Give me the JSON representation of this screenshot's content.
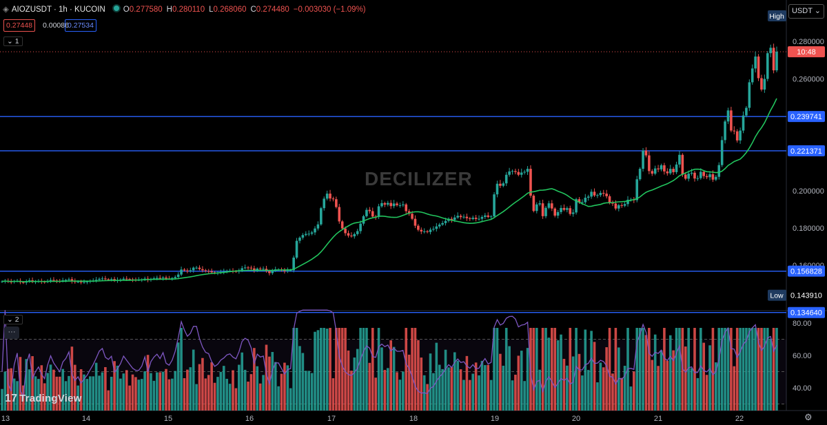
{
  "header": {
    "symbol": "AIOZUSDT · 1h · KUCOIN",
    "o_label": "O",
    "o": "0.277580",
    "h_label": "H",
    "h": "0.280110",
    "l_label": "L",
    "l": "0.268060",
    "c_label": "C",
    "c": "0.274480",
    "change": "−0.003030 (−1.09%)",
    "bid": "0.27448",
    "spread": "0.00086",
    "ask": "0.27534"
  },
  "panes": {
    "main_tag": "1",
    "rsi_tag": "2",
    "more": "···"
  },
  "currency_button": "USDT",
  "watermark": "DECILIZER",
  "branding": "TradingView",
  "price_axis": {
    "ticks": [
      "0.280000",
      "0.260000",
      "0.200000",
      "0.180000",
      "0.160000"
    ],
    "high_label": "High",
    "low_label": "Low",
    "current_price_countdown": "10:48",
    "horizontal_lines": [
      "0.239741",
      "0.221371",
      "0.156828",
      "0.134640"
    ],
    "low_value": "0.143910"
  },
  "rsi_axis": {
    "ticks": [
      "80.00",
      "60.00",
      "40.00"
    ]
  },
  "time_axis": {
    "ticks": [
      "13",
      "14",
      "15",
      "16",
      "17",
      "18",
      "19",
      "20",
      "21",
      "22"
    ]
  },
  "colors": {
    "up": "#26a69a",
    "down": "#ef5350",
    "ma": "#22c55e",
    "rsi": "#7e57c2",
    "hline": "#2962ff"
  },
  "chart_data": {
    "type": "candlestick",
    "timeframe": "1h",
    "y_range": [
      0.134,
      0.297
    ],
    "x_ticks": [
      "13",
      "14",
      "15",
      "16",
      "17",
      "18",
      "19",
      "20",
      "21",
      "22"
    ],
    "horizontal_levels": [
      0.239741,
      0.221371,
      0.156828,
      0.13464
    ],
    "low": 0.14391,
    "last": 0.27448,
    "closes": [
      0.1513,
      0.1517,
      0.1512,
      0.1511,
      0.1514,
      0.1516,
      0.1509,
      0.1507,
      0.1515,
      0.1519,
      0.151,
      0.1513,
      0.1515,
      0.1512,
      0.151,
      0.1516,
      0.1521,
      0.1518,
      0.1516,
      0.1514,
      0.1519,
      0.1521,
      0.1525,
      0.1514,
      0.151,
      0.1512,
      0.1508,
      0.151,
      0.1512,
      0.1515,
      0.1518,
      0.1522,
      0.1527,
      0.1529,
      0.1525,
      0.1524,
      0.1526,
      0.1518,
      0.152,
      0.1523,
      0.1528,
      0.1526,
      0.1524,
      0.1522,
      0.1521,
      0.1521,
      0.1523,
      0.1528,
      0.1521,
      0.1527,
      0.153,
      0.1532,
      0.153,
      0.1534,
      0.1529,
      0.1528,
      0.1531,
      0.1537,
      0.155,
      0.1577,
      0.1572,
      0.1568,
      0.1573,
      0.1587,
      0.1587,
      0.1579,
      0.1573,
      0.1569,
      0.1568,
      0.1562,
      0.1558,
      0.156,
      0.1564,
      0.1566,
      0.1569,
      0.157,
      0.1568,
      0.1567,
      0.1573,
      0.1584,
      0.1588,
      0.1587,
      0.1583,
      0.1573,
      0.1582,
      0.158,
      0.1581,
      0.1568,
      0.1558,
      0.157,
      0.1578,
      0.1578,
      0.1573,
      0.1568,
      0.1572,
      0.1573,
      0.1641,
      0.1731,
      0.1748,
      0.1762,
      0.1768,
      0.1769,
      0.1776,
      0.1797,
      0.1819,
      0.1906,
      0.1957,
      0.1984,
      0.1958,
      0.1954,
      0.1912,
      0.1835,
      0.1797,
      0.1772,
      0.1759,
      0.1755,
      0.1767,
      0.1783,
      0.1823,
      0.1863,
      0.1897,
      0.189,
      0.1861,
      0.1859,
      0.1916,
      0.1933,
      0.1925,
      0.1934,
      0.1917,
      0.1931,
      0.1922,
      0.1922,
      0.1926,
      0.189,
      0.1876,
      0.1849,
      0.1812,
      0.179,
      0.1781,
      0.1782,
      0.1778,
      0.1791,
      0.1795,
      0.1808,
      0.1818,
      0.1826,
      0.1838,
      0.1849,
      0.1843,
      0.1856,
      0.1865,
      0.1858,
      0.186,
      0.1852,
      0.1848,
      0.1855,
      0.1848,
      0.1849,
      0.1859,
      0.1867,
      0.1859,
      0.1862,
      0.198,
      0.2037,
      0.2026,
      0.2039,
      0.2085,
      0.2103,
      0.2105,
      0.21,
      0.2085,
      0.2097,
      0.2101,
      0.2117,
      0.1973,
      0.1891,
      0.1926,
      0.1932,
      0.1863,
      0.1908,
      0.1932,
      0.1904,
      0.1866,
      0.1885,
      0.1907,
      0.1897,
      0.1906,
      0.1875,
      0.1883,
      0.1954,
      0.1937,
      0.1938,
      0.1962,
      0.1968,
      0.1994,
      0.1974,
      0.1976,
      0.1988,
      0.1984,
      0.197,
      0.1934,
      0.1931,
      0.1904,
      0.1922,
      0.1919,
      0.1928,
      0.1951,
      0.1952,
      0.1949,
      0.2061,
      0.2117,
      0.2215,
      0.2189,
      0.2105,
      0.2091,
      0.2119,
      0.2114,
      0.2136,
      0.2103,
      0.2093,
      0.2117,
      0.2099,
      0.214,
      0.2192,
      0.2086,
      0.2064,
      0.2091,
      0.2096,
      0.2065,
      0.2067,
      0.2101,
      0.2078,
      0.2072,
      0.2088,
      0.2059,
      0.2074,
      0.2137,
      0.2271,
      0.2371,
      0.243,
      0.2322,
      0.2318,
      0.2269,
      0.2322,
      0.2403,
      0.2444,
      0.2581,
      0.2655,
      0.2719,
      0.2603,
      0.2542,
      0.2599,
      0.2737,
      0.2766,
      0.2645,
      0.2745
    ]
  }
}
